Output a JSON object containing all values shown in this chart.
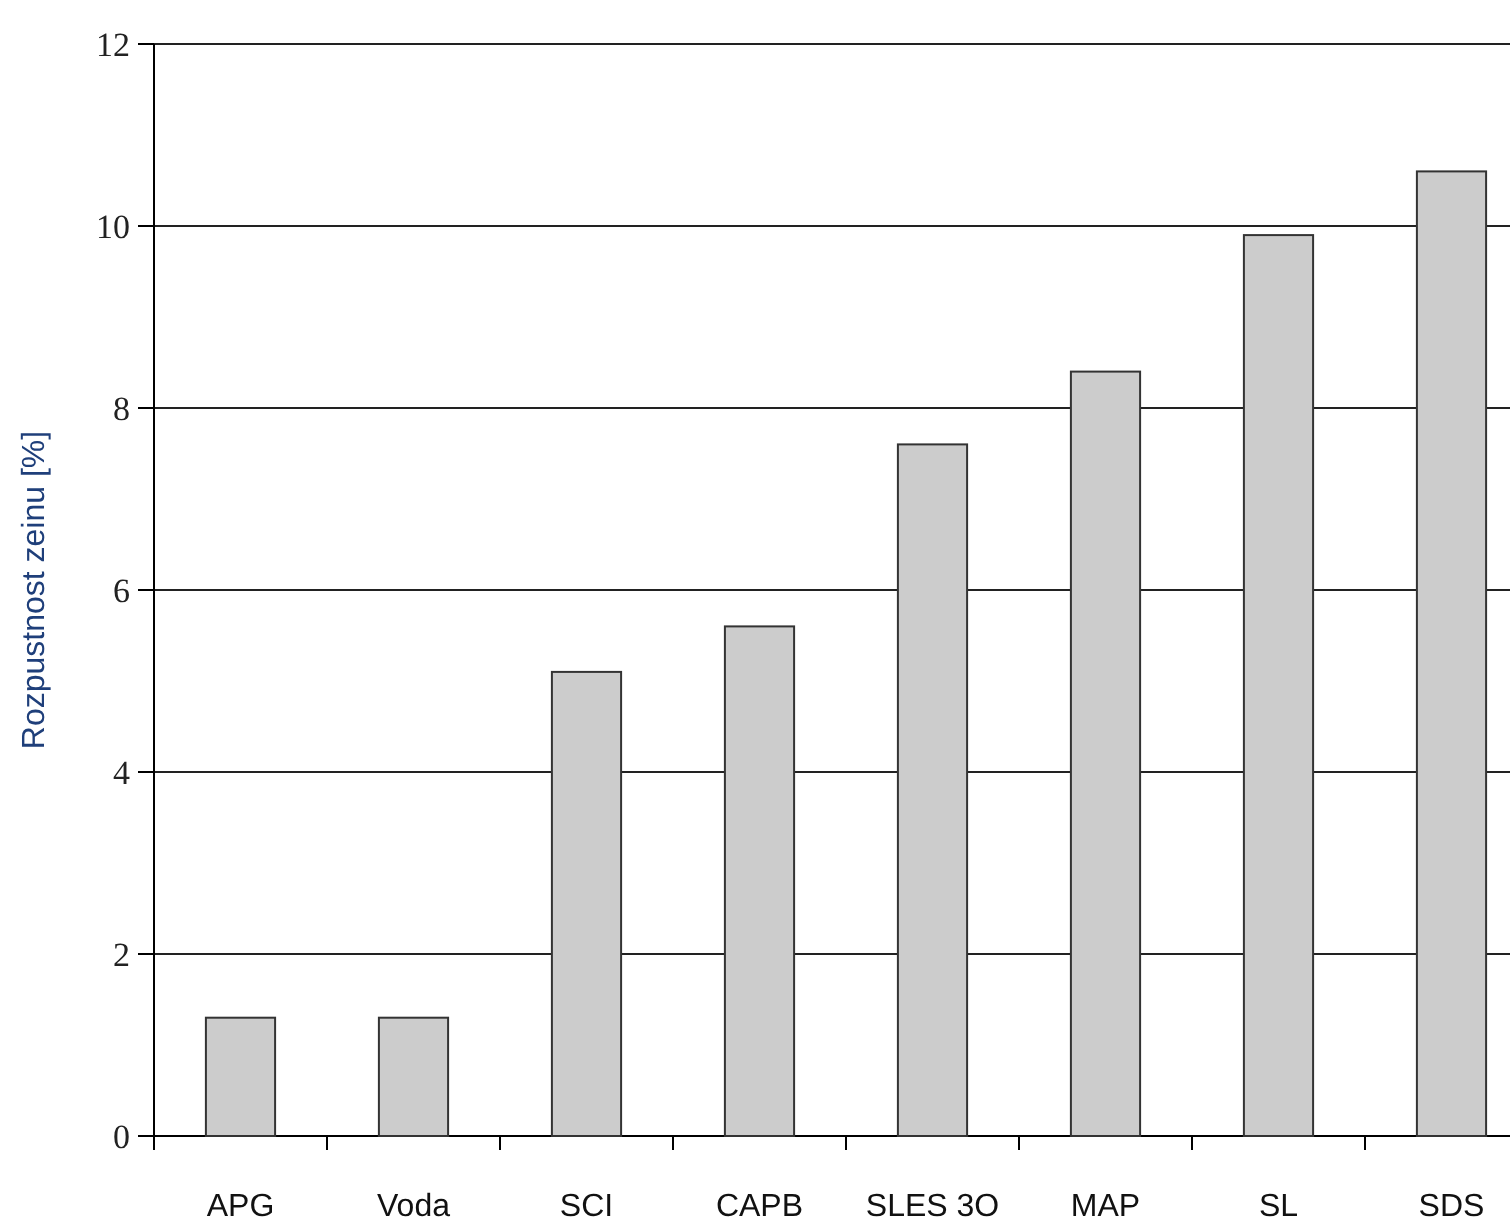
{
  "chart_data": {
    "type": "bar",
    "ylabel": "Rozpustnost zeinu [%]",
    "categories": [
      "APG",
      "Voda",
      "SCI",
      "CAPB",
      "SLES 3O",
      "MAP",
      "SL",
      "SDS"
    ],
    "values": [
      1.3,
      1.3,
      5.1,
      5.6,
      7.6,
      8.4,
      9.9,
      10.6
    ],
    "color": "#cccccc",
    "ylim": [
      0,
      12
    ],
    "yticks": [
      0,
      2,
      4,
      6,
      8,
      10,
      12
    ],
    "grid": "y"
  }
}
